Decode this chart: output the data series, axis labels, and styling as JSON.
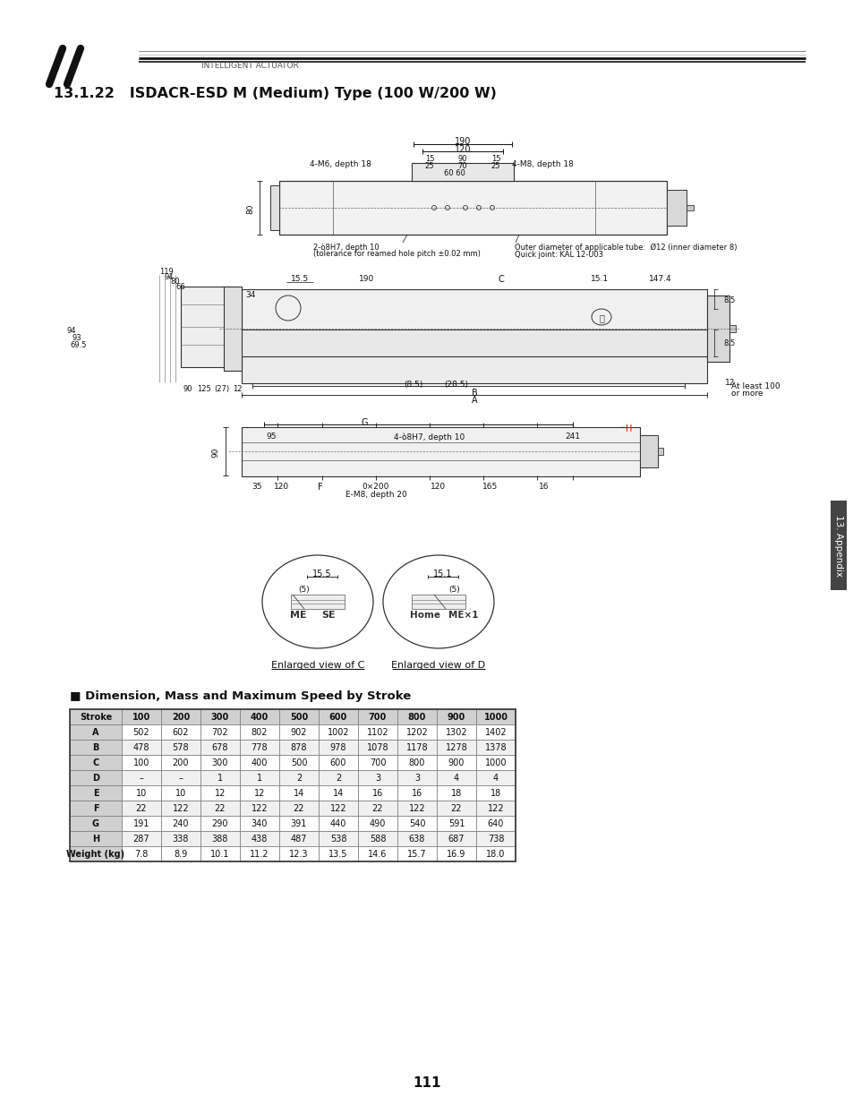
{
  "title": "13.1.22   ISDACR-ESD M (Medium) Type (100 W/200 W)",
  "header_text": "INTELLIGENT ACTUATOR",
  "section_label": "13. Appendix",
  "page_number": "111",
  "table_title": "■ Dimension, Mass and Maximum Speed by Stroke",
  "table_header": [
    "Stroke",
    "100",
    "200",
    "300",
    "400",
    "500",
    "600",
    "700",
    "800",
    "900",
    "1000"
  ],
  "table_rows": [
    [
      "A",
      "502",
      "602",
      "702",
      "802",
      "902",
      "1002",
      "1102",
      "1202",
      "1302",
      "1402"
    ],
    [
      "B",
      "478",
      "578",
      "678",
      "778",
      "878",
      "978",
      "1078",
      "1178",
      "1278",
      "1378"
    ],
    [
      "C",
      "100",
      "200",
      "300",
      "400",
      "500",
      "600",
      "700",
      "800",
      "900",
      "1000"
    ],
    [
      "D",
      "–",
      "–",
      "1",
      "1",
      "2",
      "2",
      "3",
      "3",
      "4",
      "4"
    ],
    [
      "E",
      "10",
      "10",
      "12",
      "12",
      "14",
      "14",
      "16",
      "16",
      "18",
      "18"
    ],
    [
      "F",
      "22",
      "122",
      "22",
      "122",
      "22",
      "122",
      "22",
      "122",
      "22",
      "122"
    ],
    [
      "G",
      "191",
      "240",
      "290",
      "340",
      "391",
      "440",
      "490",
      "540",
      "591",
      "640"
    ],
    [
      "H",
      "287",
      "338",
      "388",
      "438",
      "487",
      "538",
      "588",
      "638",
      "687",
      "738"
    ],
    [
      "Weight (kg)",
      "7.8",
      "8.9",
      "10.1",
      "11.2",
      "12.3",
      "13.5",
      "14.6",
      "15.7",
      "16.9",
      "18.0"
    ]
  ],
  "enlarged_c_label": "Enlarged view of C",
  "enlarged_d_label": "Enlarged view of D",
  "bg_color": "#ffffff",
  "text_color": "#111111"
}
